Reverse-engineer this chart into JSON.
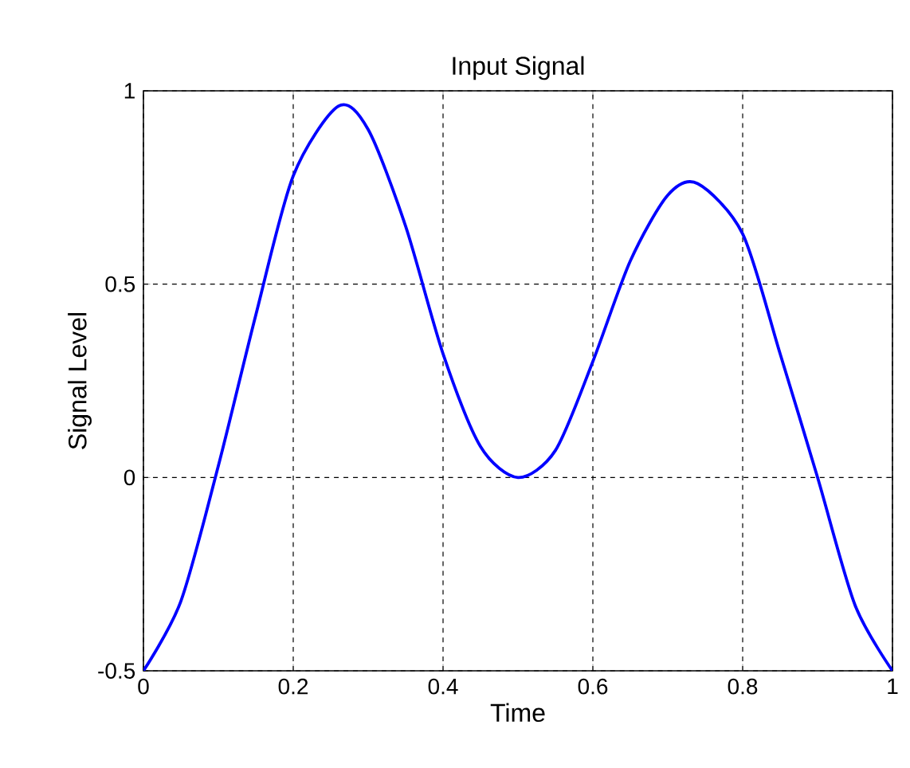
{
  "chart_data": {
    "type": "line",
    "title": "Input Signal",
    "xlabel": "Time",
    "ylabel": "Signal Level",
    "x": [
      0,
      0.05,
      0.1,
      0.15,
      0.2,
      0.26,
      0.3,
      0.35,
      0.4,
      0.45,
      0.5,
      0.55,
      0.6,
      0.65,
      0.7,
      0.74,
      0.8,
      0.85,
      0.9,
      0.95,
      1
    ],
    "series": [
      {
        "color": "#0000ff",
        "values": [
          -0.5,
          -0.32,
          0.03,
          0.42,
          0.78,
          0.96,
          0.9,
          0.65,
          0.32,
          0.08,
          0.0,
          0.07,
          0.3,
          0.56,
          0.73,
          0.76,
          0.63,
          0.32,
          0.0,
          -0.33,
          -0.5
        ]
      }
    ],
    "xlim": [
      0,
      1
    ],
    "ylim": [
      -0.5,
      1
    ],
    "xticks": [
      0,
      0.2,
      0.4,
      0.6,
      0.8,
      1
    ],
    "yticks": [
      -0.5,
      0,
      0.5,
      1
    ],
    "grid": true,
    "line_style": "solid",
    "marker": "none"
  }
}
